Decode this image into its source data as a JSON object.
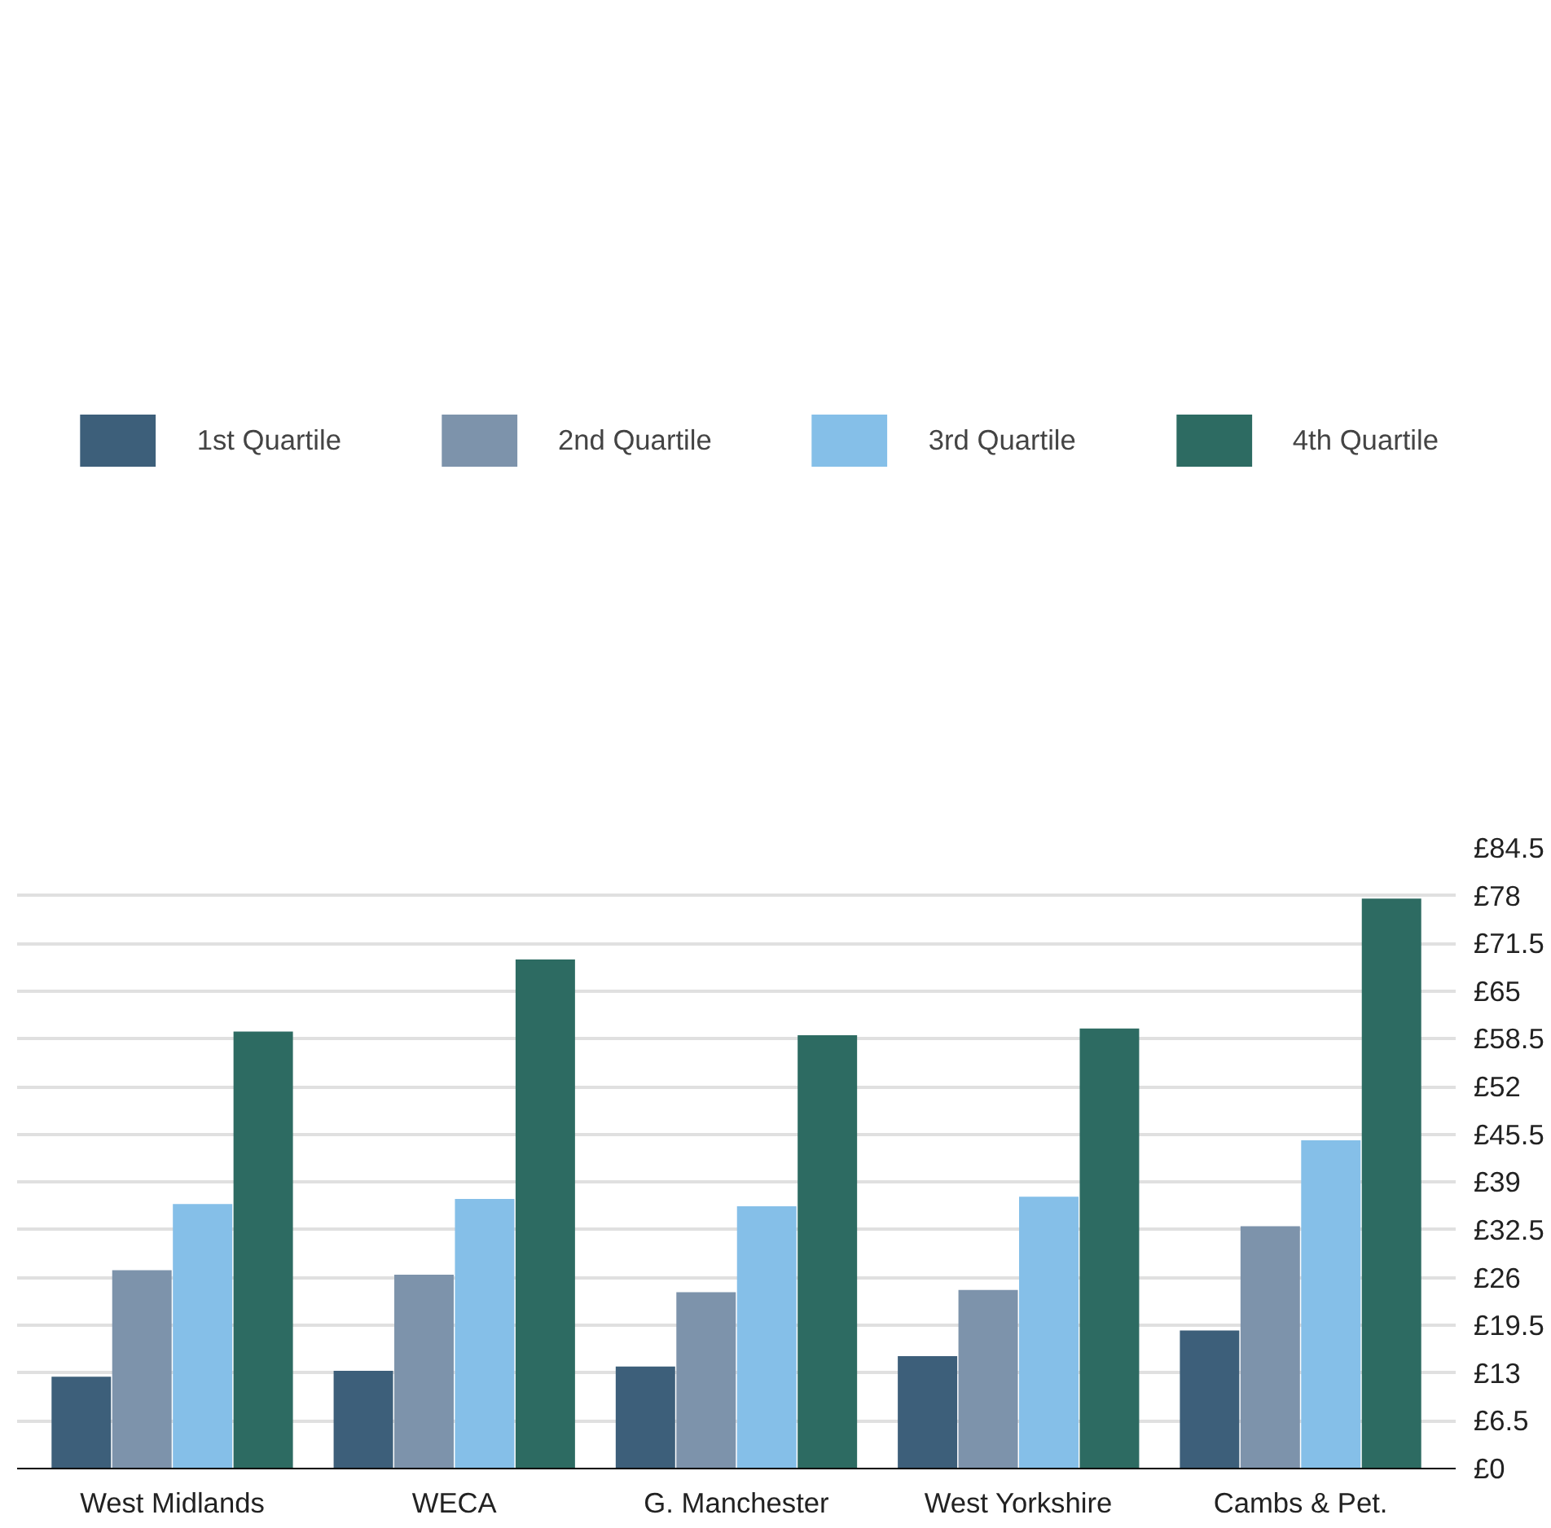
{
  "chart_data": {
    "type": "bar",
    "categories": [
      "West Midlands",
      "WECA",
      "G. Manchester",
      "West Yorkshire",
      "Cambs & Pet."
    ],
    "series": [
      {
        "name": "1st Quartile",
        "color": "#3d5f7a",
        "values": [
          12.5,
          13.3,
          13.9,
          15.3,
          18.8
        ]
      },
      {
        "name": "2nd Quartile",
        "color": "#7d93ab",
        "values": [
          27.0,
          26.4,
          24.0,
          24.3,
          33.0
        ]
      },
      {
        "name": "3rd Quartile",
        "color": "#85bfe8",
        "values": [
          36.0,
          36.7,
          35.7,
          37.0,
          44.7
        ]
      },
      {
        "name": "4th Quartile",
        "color": "#2d6b62",
        "values": [
          59.5,
          69.3,
          59.0,
          59.9,
          77.6
        ]
      }
    ],
    "ylim": [
      0,
      84.5
    ],
    "yticks": [
      {
        "value": 0,
        "label": "£0"
      },
      {
        "value": 6.5,
        "label": "£6.5"
      },
      {
        "value": 13,
        "label": "£13"
      },
      {
        "value": 19.5,
        "label": "£19.5"
      },
      {
        "value": 26,
        "label": "£26"
      },
      {
        "value": 32.5,
        "label": "£32.5"
      },
      {
        "value": 39,
        "label": "£39"
      },
      {
        "value": 45.5,
        "label": "£45.5"
      },
      {
        "value": 52,
        "label": "£52"
      },
      {
        "value": 58.5,
        "label": "£58.5"
      },
      {
        "value": 65,
        "label": "£65"
      },
      {
        "value": 71.5,
        "label": "£71.5"
      },
      {
        "value": 78,
        "label": "£78"
      },
      {
        "value": 84.5,
        "label": "£84.5"
      }
    ],
    "grid": "y",
    "legend": "top"
  }
}
